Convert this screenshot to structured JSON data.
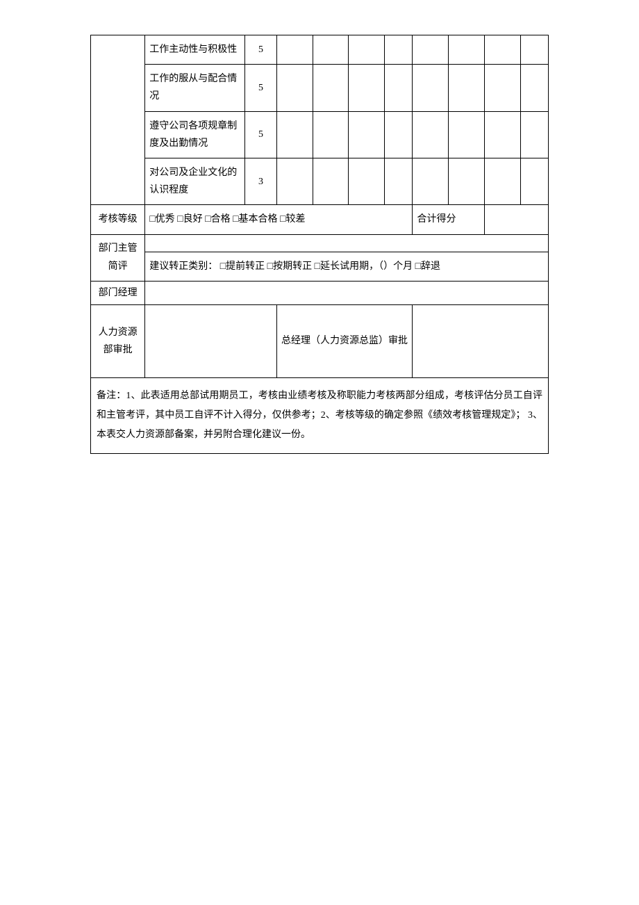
{
  "rows": [
    {
      "label": "工作主动性与积极性",
      "score": "5"
    },
    {
      "label": "工作的服从与配合情况",
      "score": "5"
    },
    {
      "label": "遵守公司各项规章制度及出勤情况",
      "score": "5"
    },
    {
      "label": "对公司及企业文化的认识程度",
      "score": "3"
    }
  ],
  "gradeRow": {
    "label": "考核等级",
    "options": "□优秀 □良好 □合格 □基本合格 □较差",
    "totalLabel": "合计得分"
  },
  "supervisor": {
    "label": "部门主管简评",
    "suggestion": "建议转正类别： □提前转正 □按期转正 □延长试用期，（）个月 □辞退"
  },
  "manager": {
    "label": "部门经理"
  },
  "hr": {
    "label": "人力资源部审批",
    "gmLabel": "总经理（人力资源总监）审批"
  },
  "notes": "备注：1、此表适用总部试用期员工，考核由业绩考核及称职能力考核两部分组成，考核评估分员工自评和主管考评，其中员工自评不计入得分，仅供参考；2、考核等级的确定参照《绩效考核管理规定》； 3、本表交人力资源部备案，并另附合理化建议一份。"
}
